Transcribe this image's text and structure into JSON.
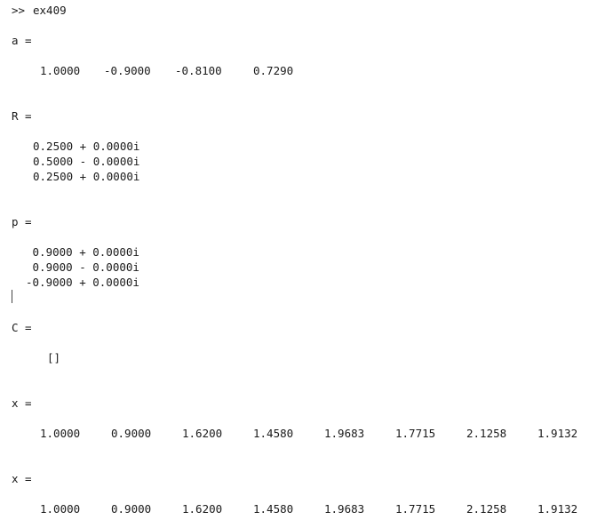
{
  "command": {
    "prompt": ">>",
    "text": "ex409"
  },
  "a": {
    "label": "a =",
    "values": [
      "1.0000",
      "-0.9000",
      "-0.8100",
      "0.7290"
    ]
  },
  "R": {
    "label": "R =",
    "rows": [
      "0.2500 + 0.0000i",
      "0.5000 - 0.0000i",
      "0.2500 + 0.0000i"
    ]
  },
  "p": {
    "label": "p =",
    "rows": [
      " 0.9000 + 0.0000i",
      " 0.9000 - 0.0000i",
      "-0.9000 + 0.0000i"
    ]
  },
  "C": {
    "label": "C =",
    "value": "[]"
  },
  "x1": {
    "label": "x =",
    "values": [
      "1.0000",
      "0.9000",
      "1.6200",
      "1.4580",
      "1.9683",
      "1.7715",
      "2.1258",
      "1.9132"
    ]
  },
  "x2": {
    "label": "x =",
    "values": [
      "1.0000",
      "0.9000",
      "1.6200",
      "1.4580",
      "1.9683",
      "1.7715",
      "2.1258",
      "1.9132"
    ]
  }
}
